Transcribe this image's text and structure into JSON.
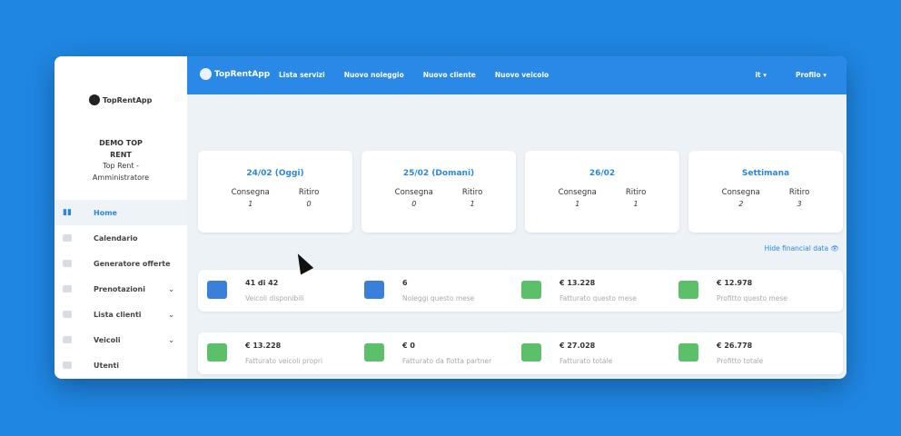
{
  "brand": "TopRentApp",
  "user": {
    "company": "DEMO TOP RENT",
    "role": "Top Rent - Amministratore"
  },
  "sidebar": {
    "items": [
      {
        "label": "Home",
        "icon": "bar-chart-icon",
        "active": true
      },
      {
        "label": "Calendario",
        "icon": "calendar-icon"
      },
      {
        "label": "Generatore offerte",
        "icon": "offer-icon"
      },
      {
        "label": "Prenotazioni",
        "icon": "booking-icon",
        "expandable": true
      },
      {
        "label": "Lista clienti",
        "icon": "clients-icon",
        "expandable": true
      },
      {
        "label": "Veicoli",
        "icon": "car-icon",
        "expandable": true
      },
      {
        "label": "Utenti",
        "icon": "user-icon"
      }
    ]
  },
  "header": {
    "nav": [
      "Lista servizi",
      "Nuovo noleggio",
      "Nuovo cliente",
      "Nuovo veicolo"
    ],
    "lang": "it ▾",
    "profile": "Profilo ▾"
  },
  "cards": [
    {
      "title": "24/02 (Oggi)",
      "consegna_label": "Consegna",
      "ritiro_label": "Ritiro",
      "consegna": "1",
      "ritiro": "0"
    },
    {
      "title": "25/02 (Domani)",
      "consegna_label": "Consegna",
      "ritiro_label": "Ritiro",
      "consegna": "0",
      "ritiro": "1"
    },
    {
      "title": "26/02",
      "consegna_label": "Consegna",
      "ritiro_label": "Ritiro",
      "consegna": "1",
      "ritiro": "1"
    },
    {
      "title": "Settimana",
      "consegna_label": "Consegna",
      "ritiro_label": "Ritiro",
      "consegna": "2",
      "ritiro": "3"
    }
  ],
  "hide_financial": "Hide financial data 👁",
  "stats1": [
    {
      "value": "41 di 42",
      "label": "Veicoli disponibili",
      "icon": "car-icon",
      "color": "#3a7fd9"
    },
    {
      "value": "6",
      "label": "Noleggi questo mese",
      "icon": "clipboard-icon",
      "color": "#3a7fd9"
    },
    {
      "value": "€ 13.228",
      "label": "Fatturato questo mese",
      "icon": "banknote-icon",
      "color": "#5cbf6a"
    },
    {
      "value": "€ 12.978",
      "label": "Profitto questo mese",
      "icon": "banknote-icon",
      "color": "#5cbf6a"
    }
  ],
  "stats2": [
    {
      "value": "€ 13.228",
      "label": "Fatturato veicoli propri",
      "icon": "cars-icon",
      "color": "#5cbf6a"
    },
    {
      "value": "€ 0",
      "label": "Fatturato da flotta partner",
      "icon": "handshake-icon",
      "color": "#5cbf6a"
    },
    {
      "value": "€ 27.028",
      "label": "Fatturato totale",
      "icon": "dollar-growth-icon",
      "color": "#5cbf6a"
    },
    {
      "value": "€ 26.778",
      "label": "Profitto totale",
      "icon": "money-bag-icon",
      "color": "#5cbf6a"
    }
  ]
}
